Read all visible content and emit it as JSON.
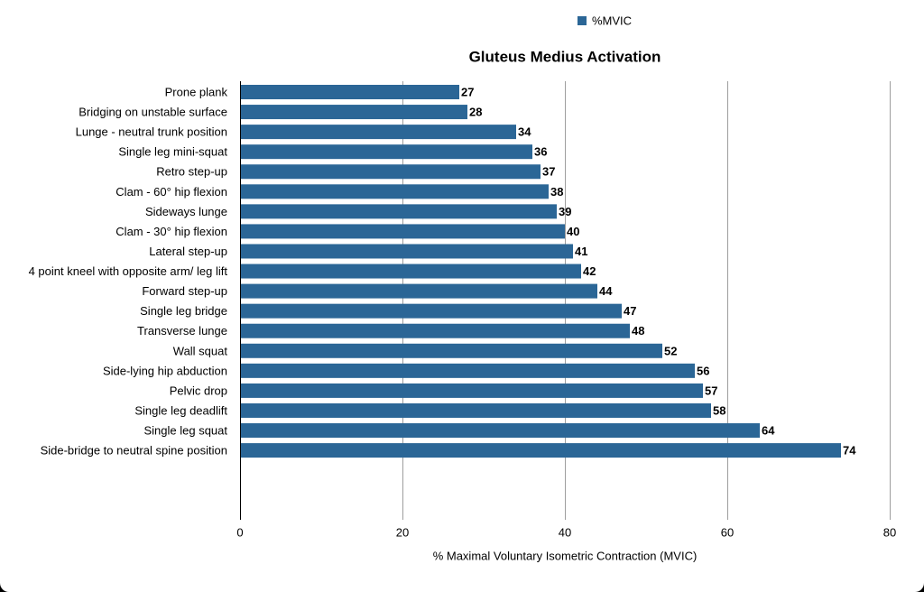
{
  "chart_data": {
    "type": "bar",
    "orientation": "horizontal",
    "title": "Gluteus Medius Activation",
    "xlabel": "% Maximal Voluntary Isometric Contraction (MVIC)",
    "ylabel": "",
    "xlim": [
      0,
      80
    ],
    "xticks": [
      0,
      20,
      40,
      60,
      80
    ],
    "grid": true,
    "legend_position": "top",
    "bar_color": "#2b6696",
    "categories": [
      "Prone plank",
      "Bridging on unstable surface",
      "Lunge - neutral trunk position",
      "Single leg mini-squat",
      "Retro step-up",
      "Clam - 60° hip flexion",
      "Sideways lunge",
      "Clam - 30° hip flexion",
      "Lateral step-up",
      "4 point kneel with opposite arm/ leg lift",
      "Forward step-up",
      "Single leg bridge",
      "Transverse lunge",
      "Wall squat",
      "Side-lying hip abduction",
      "Pelvic drop",
      "Single leg deadlift",
      "Single leg squat",
      "Side-bridge to neutral spine position"
    ],
    "series": [
      {
        "name": "%MVIC",
        "values": [
          27,
          28,
          34,
          36,
          37,
          38,
          39,
          40,
          41,
          42,
          44,
          47,
          48,
          52,
          56,
          57,
          58,
          64,
          74
        ]
      }
    ]
  }
}
